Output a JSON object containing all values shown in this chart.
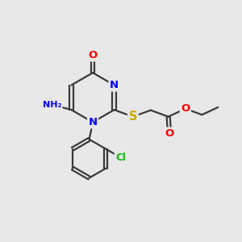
{
  "bg_color": "#e8e8e8",
  "bond_color": "#3a3a3a",
  "bond_width": 1.6,
  "atom_colors": {
    "O": "#ff0000",
    "N": "#0000ff",
    "S": "#ccaa00",
    "Cl": "#00bb00",
    "H": "#707070",
    "C": "#3a3a3a"
  },
  "font_size": 9.5
}
